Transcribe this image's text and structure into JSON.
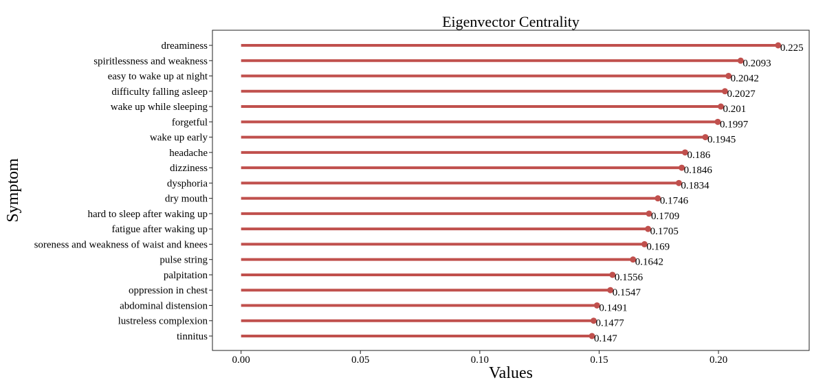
{
  "chart_data": {
    "type": "lollipop-horizontal",
    "title": "Eigenvector Centrality",
    "xlabel": "Values",
    "ylabel": "Symptom",
    "xlim": [
      -0.012,
      0.238
    ],
    "xticks": [
      "0.00",
      "0.05",
      "0.10",
      "0.15",
      "0.20"
    ],
    "xtick_values": [
      0.0,
      0.05,
      0.1,
      0.15,
      0.2
    ],
    "grid": false,
    "color": "#c0504d",
    "categories": [
      "dreaminess",
      "spiritlessness and weakness",
      "easy to wake up at night",
      "difficulty  falling  asleep",
      "wake up while sleeping",
      "forgetful",
      "wake up early",
      "headache",
      "dizziness",
      "dysphoria",
      "dry mouth",
      "hard to sleep after waking up",
      "fatigue after waking up",
      "soreness and weakness of waist and knees",
      "pulse string",
      "palpitation",
      "oppression in chest",
      "abdominal distension",
      "lustreless complexion",
      "tinnitus"
    ],
    "values": [
      0.225,
      0.2093,
      0.2042,
      0.2027,
      0.201,
      0.1997,
      0.1945,
      0.186,
      0.1846,
      0.1834,
      0.1746,
      0.1709,
      0.1705,
      0.169,
      0.1642,
      0.1556,
      0.1547,
      0.1491,
      0.1477,
      0.147
    ],
    "value_labels": [
      "0.225",
      "0.2093",
      "0.2042",
      "0.2027",
      "0.201",
      "0.1997",
      "0.1945",
      "0.186",
      "0.1846",
      "0.1834",
      "0.1746",
      "0.1709",
      "0.1705",
      "0.169",
      "0.1642",
      "0.1556",
      "0.1547",
      "0.1491",
      "0.1477",
      "0.147"
    ]
  }
}
